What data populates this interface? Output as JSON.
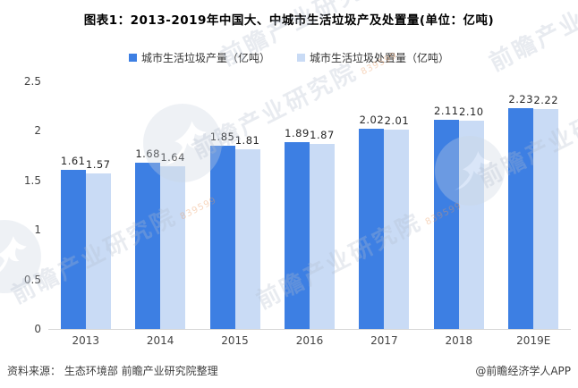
{
  "header": {
    "title": "图表1：2013-2019年中国大、中城市生活垃圾产及处置量(单位：亿吨)"
  },
  "chart_data": {
    "type": "bar",
    "title": "图表1：2013-2019年中国大、中城市生活垃圾产及处置量(单位：亿吨)",
    "categories": [
      "2013",
      "2014",
      "2015",
      "2016",
      "2017",
      "2018",
      "2019E"
    ],
    "series": [
      {
        "name": "城市生活垃圾产量（亿吨）",
        "color": "#3D7FE3",
        "values": [
          1.61,
          1.68,
          1.85,
          1.89,
          2.02,
          2.11,
          2.23
        ]
      },
      {
        "name": "城市生活垃圾处置量（亿吨）",
        "color": "#C9DBF5",
        "values": [
          1.57,
          1.64,
          1.81,
          1.87,
          2.01,
          2.1,
          2.22
        ]
      }
    ],
    "xlabel": "",
    "ylabel": "",
    "ylim": [
      0,
      2.5
    ],
    "ytick_labels": [
      "0",
      "0.5",
      "1",
      "1.5",
      "2",
      "2.5"
    ],
    "grid": false,
    "legend_position": "top",
    "value_decimals": 2
  },
  "footer": {
    "source": "资料来源：  生态环境部 前瞻产业研究院整理",
    "credit": "@前瞻经济学人APP"
  },
  "watermark": {
    "text": "前瞻产业研究院",
    "code": "839599"
  },
  "colors": {
    "axis_line": "#d9d9d9",
    "tick_text": "#434343",
    "value_text": "#262626"
  }
}
